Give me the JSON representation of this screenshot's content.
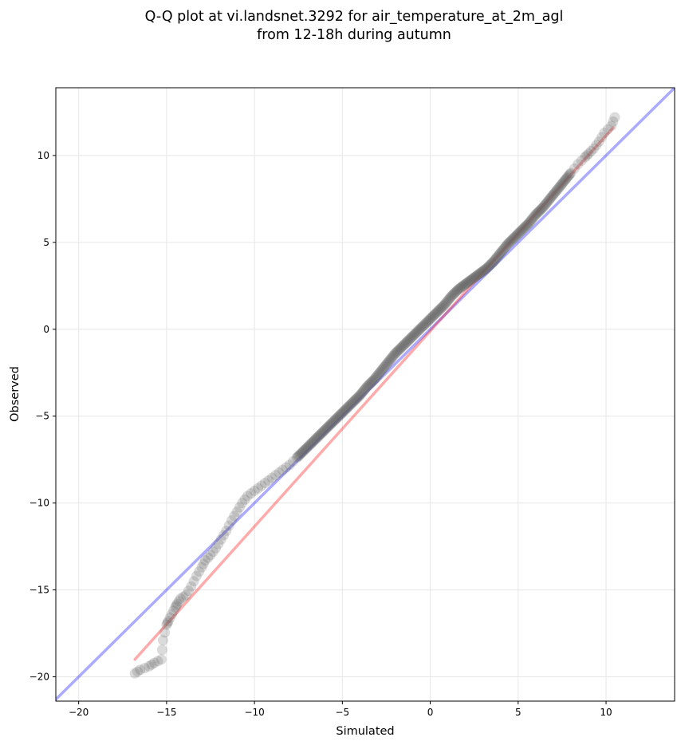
{
  "chart_data": {
    "type": "scatter",
    "title": "Q-Q plot at vi.landsnet.3292 for air_temperature_at_2m_agl",
    "subtitle": "from 12-18h during autumn",
    "xlabel": "Simulated",
    "ylabel": "Observed",
    "xlim": [
      -21.3,
      13.9
    ],
    "ylim": [
      -21.4,
      13.9
    ],
    "x_ticks": [
      -20,
      -15,
      -10,
      -5,
      0,
      5,
      10
    ],
    "y_ticks": [
      -20,
      -15,
      -10,
      -5,
      0,
      5,
      10
    ],
    "x_tick_labels": [
      "−20",
      "−15",
      "−10",
      "−5",
      "0",
      "5",
      "10"
    ],
    "y_tick_labels": [
      "−20",
      "−15",
      "−10",
      "−5",
      "0",
      "5",
      "10"
    ],
    "grid": true,
    "legend": "none",
    "colors": {
      "points": "#5a5a5a",
      "identity_line": "#0000ff",
      "fit_line": "#ff0000",
      "grid": "#e6e6e6"
    },
    "series": [
      {
        "kind": "quantiles",
        "x": [
          -16.8,
          -16.5,
          -16.0,
          -15.7,
          -15.3,
          -15.2,
          -15.0,
          -14.9,
          -14.7,
          -14.5,
          -14.4,
          -14.2,
          -13.9,
          -13.6,
          -13.3,
          -13.0,
          -12.8,
          -12.5,
          -12.2,
          -11.9,
          -11.6,
          -11.3,
          -11.0,
          -10.7,
          -10.4,
          -10.0,
          -9.6,
          -9.2,
          -8.8,
          -8.4,
          -8.0,
          -7.6,
          -7.2,
          -6.8,
          -6.4,
          -6.0,
          -5.6,
          -5.2,
          -4.8,
          -4.4,
          -4.0,
          -3.6,
          -3.2,
          -2.8,
          -2.4,
          -2.0,
          -1.6,
          -1.2,
          -0.8,
          -0.4,
          0.0,
          0.4,
          0.8,
          1.2,
          1.6,
          2.0,
          2.4,
          2.8,
          3.2,
          3.6,
          4.0,
          4.4,
          4.8,
          5.2,
          5.6,
          6.0,
          6.4,
          6.8,
          7.2,
          7.6,
          8.0,
          8.4,
          8.8,
          9.0,
          9.3,
          9.6,
          9.9,
          10.3,
          10.5
        ],
        "y": [
          -19.8,
          -19.6,
          -19.4,
          -19.2,
          -19.0,
          -17.9,
          -17.0,
          -16.8,
          -16.4,
          -16.0,
          -15.8,
          -15.5,
          -15.3,
          -14.8,
          -14.2,
          -13.7,
          -13.3,
          -13.0,
          -12.6,
          -12.1,
          -11.6,
          -11.0,
          -10.5,
          -10.0,
          -9.6,
          -9.3,
          -9.0,
          -8.7,
          -8.4,
          -8.1,
          -7.8,
          -7.4,
          -7.0,
          -6.6,
          -6.2,
          -5.8,
          -5.4,
          -5.0,
          -4.6,
          -4.2,
          -3.8,
          -3.3,
          -2.9,
          -2.4,
          -1.9,
          -1.4,
          -1.0,
          -0.6,
          -0.2,
          0.2,
          0.6,
          1.0,
          1.4,
          1.9,
          2.3,
          2.6,
          2.9,
          3.2,
          3.5,
          3.9,
          4.4,
          4.9,
          5.3,
          5.7,
          6.1,
          6.6,
          7.0,
          7.5,
          8.0,
          8.5,
          9.0,
          9.5,
          9.9,
          10.1,
          10.4,
          10.8,
          11.3,
          11.7,
          12.2
        ]
      },
      {
        "kind": "identity-line",
        "x": [
          -21.3,
          13.9
        ],
        "y": [
          -21.3,
          13.9
        ]
      },
      {
        "kind": "fit-line",
        "x": [
          -16.8,
          10.4
        ],
        "y": [
          -19.0,
          11.6
        ]
      }
    ]
  }
}
